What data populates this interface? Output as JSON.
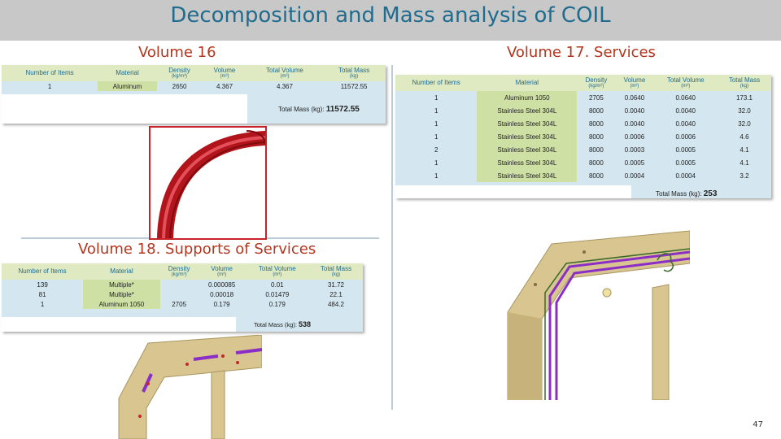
{
  "title": "Decomposition and Mass analysis of COIL",
  "page_number": "47",
  "volume16": {
    "label": "Volume 16",
    "headers": [
      {
        "name": "Number of Items",
        "unit": ""
      },
      {
        "name": "Material",
        "unit": ""
      },
      {
        "name": "Density",
        "unit": "(kg/m³)"
      },
      {
        "name": "Volume",
        "unit": "(m³)"
      },
      {
        "name": "Total Volume",
        "unit": "(m³)"
      },
      {
        "name": "Total Mass",
        "unit": "(kg)"
      }
    ],
    "rows": [
      [
        "1",
        "Aluminum",
        "2650",
        "4.367",
        "4.367",
        "11572.55"
      ]
    ],
    "total_label": "Total Mass (kg):",
    "total_value": "11572.55"
  },
  "volume17": {
    "label": "Volume 17. Services",
    "headers": [
      {
        "name": "Number of Items",
        "unit": ""
      },
      {
        "name": "Material",
        "unit": ""
      },
      {
        "name": "Density",
        "unit": "(kg/m³)"
      },
      {
        "name": "Volume",
        "unit": "(m³)"
      },
      {
        "name": "Total Volume",
        "unit": "(m³)"
      },
      {
        "name": "Total Mass",
        "unit": "(kg)"
      }
    ],
    "rows": [
      [
        "1",
        "Aluminum 1050",
        "2705",
        "0.0640",
        "0.0640",
        "173.1"
      ],
      [
        "1",
        "Stainless Steel 304L",
        "8000",
        "0.0040",
        "0.0040",
        "32.0"
      ],
      [
        "1",
        "Stainless Steel 304L",
        "8000",
        "0.0040",
        "0.0040",
        "32.0"
      ],
      [
        "1",
        "Stainless Steel 304L",
        "8000",
        "0.0006",
        "0.0006",
        "4.6"
      ],
      [
        "2",
        "Stainless Steel 304L",
        "8000",
        "0.0003",
        "0.0005",
        "4.1"
      ],
      [
        "1",
        "Stainless Steel 304L",
        "8000",
        "0.0005",
        "0.0005",
        "4.1"
      ],
      [
        "1",
        "Stainless Steel 304L",
        "8000",
        "0.0004",
        "0.0004",
        "3.2"
      ]
    ],
    "total_label": "Total Mass (kg):",
    "total_value": "253"
  },
  "volume18": {
    "label": "Volume 18. Supports of Services",
    "headers": [
      {
        "name": "Number of Items",
        "unit": ""
      },
      {
        "name": "Material",
        "unit": ""
      },
      {
        "name": "Density",
        "unit": "(kg/m³)"
      },
      {
        "name": "Volume",
        "unit": "(m³)"
      },
      {
        "name": "Total Volume",
        "unit": "(m³)"
      },
      {
        "name": "Total Mass",
        "unit": "(kg)"
      }
    ],
    "rows": [
      [
        "139",
        "Multiple*",
        "",
        "0.000085",
        "0.01",
        "31.72"
      ],
      [
        "81",
        "Multiple*",
        "",
        "0.00018",
        "0.01479",
        "22.1"
      ],
      [
        "1",
        "Aluminum 1050",
        "2705",
        "0.179",
        "0.179",
        "484.2"
      ]
    ],
    "total_label": "Total Mass (kg):",
    "total_value": "538"
  },
  "colors": {
    "title_bar": "#c8c8c8",
    "title_text": "#1f6c8f",
    "label_text": "#b3361e",
    "header_fill": "#dfe9c2",
    "table_fill": "#d4e6ef",
    "material_fill": "#cfe0a4",
    "coil_red": "#b2141b",
    "structure_wood": "#d8c58f",
    "service_purple": "#8a2ec7"
  }
}
